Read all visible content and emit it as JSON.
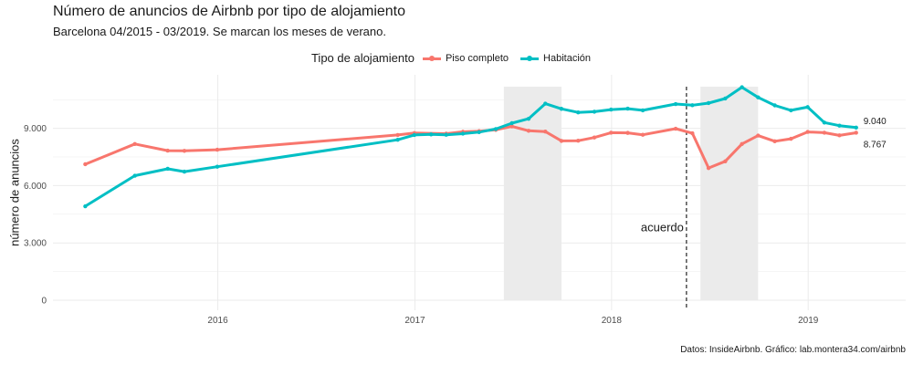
{
  "chart_data": {
    "type": "line",
    "title": "Número de anuncios de Airbnb por tipo de alojamiento",
    "subtitle": "Barcelona 04/2015 - 03/2019. Se marcan los meses de verano.",
    "ylabel": "número de anuncios",
    "xlabel": "",
    "legend_title": "Tipo de alojamiento",
    "legend_position": "top",
    "caption": "Datos: InsideAirbnb. Gráfico: lab.montera34.com/airbnb",
    "grid": true,
    "xlim": [
      "2015-03-01",
      "2019-07-01"
    ],
    "ylim": [
      0,
      11800
    ],
    "x_ticks": [
      {
        "date": "2016-01-01",
        "label": "2016"
      },
      {
        "date": "2017-01-01",
        "label": "2017"
      },
      {
        "date": "2018-01-01",
        "label": "2018"
      },
      {
        "date": "2019-01-01",
        "label": "2019"
      }
    ],
    "y_ticks": [
      {
        "value": 0,
        "label": "0"
      },
      {
        "value": 3000,
        "label": "3.000"
      },
      {
        "value": 6000,
        "label": "6.000"
      },
      {
        "value": 9000,
        "label": "9.000"
      }
    ],
    "summer_bands": [
      {
        "start": "2017-06-15",
        "end": "2017-09-30"
      },
      {
        "start": "2018-06-15",
        "end": "2018-09-30"
      }
    ],
    "annotation": {
      "date": "2018-05-20",
      "label": "acuerdo"
    },
    "series": [
      {
        "name": "Piso completo",
        "color": "#F8766D",
        "end_label": "8.767",
        "points": [
          {
            "x": "2015-04-30",
            "y": 7120
          },
          {
            "x": "2015-07-31",
            "y": 8180
          },
          {
            "x": "2015-09-30",
            "y": 7830
          },
          {
            "x": "2015-10-31",
            "y": 7820
          },
          {
            "x": "2015-12-31",
            "y": 7880
          },
          {
            "x": "2016-11-30",
            "y": 8650
          },
          {
            "x": "2016-12-31",
            "y": 8750
          },
          {
            "x": "2017-02-28",
            "y": 8720
          },
          {
            "x": "2017-03-31",
            "y": 8820
          },
          {
            "x": "2017-04-30",
            "y": 8850
          },
          {
            "x": "2017-05-31",
            "y": 8920
          },
          {
            "x": "2017-06-30",
            "y": 9100
          },
          {
            "x": "2017-07-31",
            "y": 8870
          },
          {
            "x": "2017-08-31",
            "y": 8830
          },
          {
            "x": "2017-09-30",
            "y": 8340
          },
          {
            "x": "2017-10-31",
            "y": 8350
          },
          {
            "x": "2017-11-30",
            "y": 8520
          },
          {
            "x": "2017-12-31",
            "y": 8770
          },
          {
            "x": "2018-01-31",
            "y": 8760
          },
          {
            "x": "2018-02-28",
            "y": 8660
          },
          {
            "x": "2018-04-30",
            "y": 8980
          },
          {
            "x": "2018-05-31",
            "y": 8740
          },
          {
            "x": "2018-06-30",
            "y": 6920
          },
          {
            "x": "2018-07-31",
            "y": 7270
          },
          {
            "x": "2018-08-31",
            "y": 8180
          },
          {
            "x": "2018-09-30",
            "y": 8620
          },
          {
            "x": "2018-10-31",
            "y": 8320
          },
          {
            "x": "2018-11-30",
            "y": 8450
          },
          {
            "x": "2018-12-31",
            "y": 8810
          },
          {
            "x": "2019-01-31",
            "y": 8770
          },
          {
            "x": "2019-02-28",
            "y": 8630
          },
          {
            "x": "2019-03-31",
            "y": 8767
          }
        ]
      },
      {
        "name": "Habitación",
        "color": "#00BFC4",
        "end_label": "9.040",
        "points": [
          {
            "x": "2015-04-30",
            "y": 4920
          },
          {
            "x": "2015-07-31",
            "y": 6520
          },
          {
            "x": "2015-09-30",
            "y": 6880
          },
          {
            "x": "2015-10-31",
            "y": 6730
          },
          {
            "x": "2015-12-31",
            "y": 6990
          },
          {
            "x": "2016-11-30",
            "y": 8400
          },
          {
            "x": "2016-12-31",
            "y": 8650
          },
          {
            "x": "2017-01-31",
            "y": 8680
          },
          {
            "x": "2017-02-28",
            "y": 8660
          },
          {
            "x": "2017-03-31",
            "y": 8720
          },
          {
            "x": "2017-04-30",
            "y": 8800
          },
          {
            "x": "2017-05-31",
            "y": 8960
          },
          {
            "x": "2017-06-30",
            "y": 9270
          },
          {
            "x": "2017-07-31",
            "y": 9500
          },
          {
            "x": "2017-08-31",
            "y": 10290
          },
          {
            "x": "2017-09-30",
            "y": 10020
          },
          {
            "x": "2017-10-31",
            "y": 9830
          },
          {
            "x": "2017-11-30",
            "y": 9870
          },
          {
            "x": "2017-12-31",
            "y": 9980
          },
          {
            "x": "2018-01-31",
            "y": 10030
          },
          {
            "x": "2018-02-28",
            "y": 9940
          },
          {
            "x": "2018-04-30",
            "y": 10270
          },
          {
            "x": "2018-05-31",
            "y": 10210
          },
          {
            "x": "2018-06-30",
            "y": 10320
          },
          {
            "x": "2018-07-31",
            "y": 10560
          },
          {
            "x": "2018-08-31",
            "y": 11150
          },
          {
            "x": "2018-09-30",
            "y": 10620
          },
          {
            "x": "2018-10-31",
            "y": 10200
          },
          {
            "x": "2018-11-30",
            "y": 9940
          },
          {
            "x": "2018-12-31",
            "y": 10110
          },
          {
            "x": "2019-01-31",
            "y": 9300
          },
          {
            "x": "2019-02-28",
            "y": 9140
          },
          {
            "x": "2019-03-31",
            "y": 9040
          }
        ]
      }
    ]
  }
}
